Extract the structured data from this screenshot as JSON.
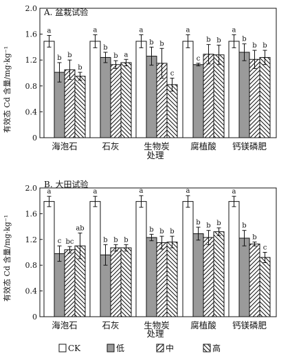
{
  "figure": {
    "xlabel": "处理",
    "ylabel": "有效态 Cd 含量/mg·kg⁻¹"
  },
  "legend": [
    {
      "label": "CK",
      "pattern": "white"
    },
    {
      "label": "低",
      "pattern": "gray"
    },
    {
      "label": "中",
      "pattern": "hatch-forward"
    },
    {
      "label": "高",
      "pattern": "hatch-back"
    }
  ],
  "colors": {
    "ink": "#111111",
    "gray": "#9a9a9a",
    "white": "#ffffff"
  },
  "chart_data": [
    {
      "type": "bar",
      "title": "A. 盆栽试验",
      "ylabel": "有效态 Cd 含量/mg·kg⁻¹",
      "ylim": [
        0,
        2.0
      ],
      "yticks": [
        "0",
        "0.4",
        "0.8",
        "1.2",
        "1.6",
        "2.0"
      ],
      "categories": [
        "海泡石",
        "石灰",
        "生物炭",
        "腐植酸",
        "钙镁磷肥"
      ],
      "series": [
        {
          "name": "CK",
          "values": [
            1.49,
            1.49,
            1.49,
            1.49,
            1.49
          ],
          "errors": [
            0.09,
            0.1,
            0.1,
            0.1,
            0.1
          ],
          "labels": [
            "a",
            "a",
            "a",
            "a",
            "a"
          ]
        },
        {
          "name": "低",
          "values": [
            1.01,
            1.24,
            1.26,
            1.13,
            1.32
          ],
          "errors": [
            0.15,
            0.08,
            0.14,
            0.02,
            0.13
          ],
          "labels": [
            "b",
            "b",
            "b",
            "c",
            "b"
          ]
        },
        {
          "name": "中",
          "values": [
            1.05,
            1.13,
            1.15,
            1.29,
            1.21
          ],
          "errors": [
            0.15,
            0.06,
            0.23,
            0.15,
            0.14
          ],
          "labels": [
            "b",
            "b",
            "b",
            "b",
            "b"
          ]
        },
        {
          "name": "高",
          "values": [
            0.95,
            1.16,
            0.82,
            1.28,
            1.24
          ],
          "errors": [
            0.06,
            0.05,
            0.1,
            0.15,
            0.11
          ],
          "labels": [
            "b",
            "a",
            "c",
            "b",
            "b"
          ]
        }
      ]
    },
    {
      "type": "bar",
      "title": "B. 大田试验",
      "ylabel": "有效态 Cd 含量/mg·kg⁻¹",
      "ylim": [
        0,
        2.0
      ],
      "yticks": [
        "0",
        "0.4",
        "0.8",
        "1.2",
        "1.6",
        "2.0"
      ],
      "categories": [
        "海泡石",
        "石灰",
        "生物炭",
        "腐植酸",
        "钙镁磷肥"
      ],
      "xlabel": "处理",
      "series": [
        {
          "name": "CK",
          "values": [
            1.79,
            1.79,
            1.79,
            1.79,
            1.79
          ],
          "errors": [
            0.08,
            0.08,
            0.09,
            0.09,
            0.08
          ],
          "labels": [
            "a",
            "a",
            "a",
            "a",
            "a"
          ]
        },
        {
          "name": "低",
          "values": [
            0.98,
            0.96,
            1.23,
            1.29,
            1.22
          ],
          "errors": [
            0.12,
            0.16,
            0.05,
            0.1,
            0.12
          ],
          "labels": [
            "c",
            "b",
            "b",
            "b",
            "b"
          ]
        },
        {
          "name": "中",
          "values": [
            1.04,
            1.07,
            1.15,
            1.23,
            1.13
          ],
          "errors": [
            0.05,
            0.05,
            0.1,
            0.11,
            0.03
          ],
          "labels": [
            "bc",
            "b",
            "b",
            "b",
            "b"
          ]
        },
        {
          "name": "高",
          "values": [
            1.1,
            1.07,
            1.16,
            1.32,
            0.92
          ],
          "errors": [
            0.2,
            0.05,
            0.09,
            0.06,
            0.08
          ],
          "labels": [
            "ab",
            "b",
            "b",
            "b",
            "c"
          ]
        }
      ]
    }
  ]
}
